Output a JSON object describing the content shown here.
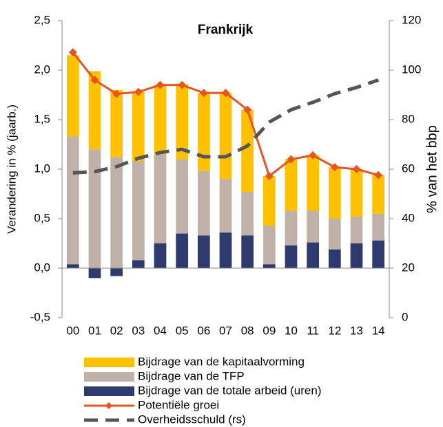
{
  "chart_data": {
    "type": "combo",
    "title": "Frankrijk",
    "y_label": "Verandering in % (jaarb.)",
    "y2_label": "% van het bbp",
    "categories": [
      "00",
      "01",
      "02",
      "03",
      "04",
      "05",
      "06",
      "07",
      "08",
      "09",
      "10",
      "11",
      "12",
      "13",
      "14"
    ],
    "ylim": [
      -0.5,
      2.5
    ],
    "yticks": [
      {
        "value": -0.5,
        "label": "-0,5"
      },
      {
        "value": 0,
        "label": "0,0"
      },
      {
        "value": 0.5,
        "label": "0,5"
      },
      {
        "value": 1,
        "label": "1,0"
      },
      {
        "value": 1.5,
        "label": "1,5"
      },
      {
        "value": 2,
        "label": "2,0"
      },
      {
        "value": 2.5,
        "label": "2,5"
      }
    ],
    "y2lim": [
      0,
      120
    ],
    "y2ticks": [
      0,
      20,
      40,
      60,
      80,
      100,
      120
    ],
    "series": [
      {
        "name": "Bijdrage van de kapitaalvorming",
        "type": "bar",
        "color": "#FFC000",
        "values": [
          0.82,
          0.79,
          0.68,
          0.7,
          0.7,
          0.76,
          0.79,
          0.87,
          0.83,
          0.5,
          0.52,
          0.56,
          0.52,
          0.48,
          0.39
        ]
      },
      {
        "name": "Bijdrage van de TFP",
        "type": "bar",
        "color": "#BFB1A8",
        "values": [
          1.29,
          1.2,
          1.12,
          1.0,
          0.9,
          0.75,
          0.65,
          0.54,
          0.44,
          0.39,
          0.35,
          0.32,
          0.31,
          0.27,
          0.27
        ]
      },
      {
        "name": "Bijdrage van de totale arbeid (uren)",
        "type": "bar",
        "color": "#2E3A6E",
        "values": [
          0.04,
          -0.1,
          -0.08,
          0.08,
          0.25,
          0.35,
          0.33,
          0.36,
          0.33,
          0.04,
          0.23,
          0.26,
          0.19,
          0.25,
          0.28
        ]
      },
      {
        "name": "Potentiële groei",
        "type": "line",
        "color": "#E8541F",
        "marker": "diamond",
        "values": [
          2.18,
          1.9,
          1.76,
          1.78,
          1.85,
          1.85,
          1.77,
          1.77,
          1.6,
          0.93,
          1.1,
          1.14,
          1.02,
          1.0,
          0.94
        ]
      },
      {
        "name": "Overheidsschuld (rs)",
        "type": "line",
        "axis": "y2",
        "color": "#555555",
        "dashed": true,
        "values": [
          58.5,
          59,
          61,
          64.4,
          66.7,
          68,
          65,
          65,
          69.4,
          79,
          84,
          87,
          90.5,
          93,
          96
        ]
      }
    ]
  }
}
